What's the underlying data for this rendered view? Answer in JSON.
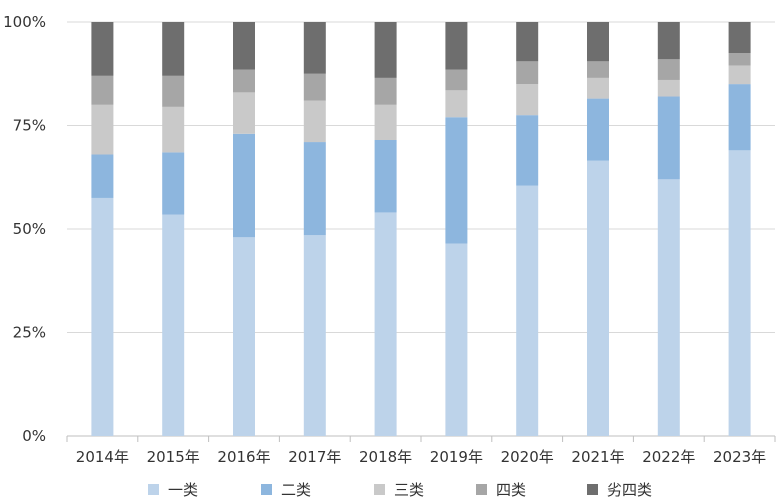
{
  "chart_data": {
    "type": "bar",
    "stacked": true,
    "percent": true,
    "categories": [
      "2014年",
      "2015年",
      "2016年",
      "2017年",
      "2018年",
      "2019年",
      "2020年",
      "2021年",
      "2022年",
      "2023年"
    ],
    "y_ticks": [
      "0%",
      "25%",
      "50%",
      "75%",
      "100%"
    ],
    "ylim": [
      0,
      100
    ],
    "grid": "horizontal",
    "legend_position": "bottom",
    "series": [
      {
        "name": "一类",
        "color": "#BDD3EA",
        "values": [
          57.5,
          53.5,
          48.0,
          48.5,
          54.0,
          46.5,
          60.5,
          66.5,
          62.0,
          69.0
        ]
      },
      {
        "name": "二类",
        "color": "#8DB6DE",
        "values": [
          10.5,
          15.0,
          25.0,
          22.5,
          17.5,
          30.5,
          17.0,
          15.0,
          20.0,
          16.0
        ]
      },
      {
        "name": "三类",
        "color": "#C9C9C9",
        "values": [
          12.0,
          11.0,
          10.0,
          10.0,
          8.5,
          6.5,
          7.5,
          5.0,
          4.0,
          4.5
        ]
      },
      {
        "name": "四类",
        "color": "#A6A6A6",
        "values": [
          7.0,
          7.5,
          5.5,
          6.5,
          6.5,
          5.0,
          5.5,
          4.0,
          5.0,
          3.0
        ]
      },
      {
        "name": "劣四类",
        "color": "#6E6E6E",
        "values": [
          13.0,
          13.0,
          11.5,
          12.5,
          13.5,
          11.5,
          9.5,
          9.5,
          9.0,
          7.5
        ]
      }
    ]
  }
}
